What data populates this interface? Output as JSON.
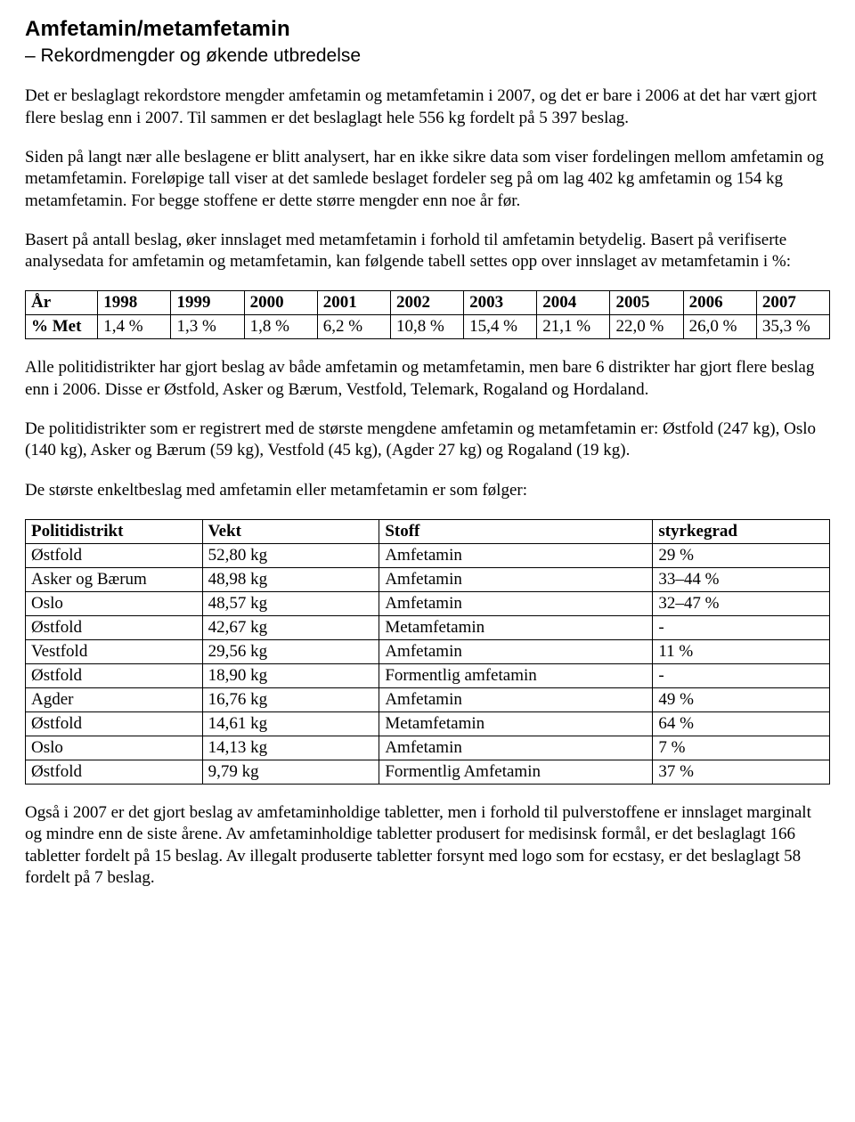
{
  "heading": {
    "title": "Amfetamin/metamfetamin",
    "subtitle": "– Rekordmengder og økende utbredelse"
  },
  "paragraphs": {
    "p1": "Det er beslaglagt rekordstore mengder amfetamin og metamfetamin i 2007, og det er bare i 2006 at det har vært gjort flere beslag enn i 2007. Til sammen er det beslaglagt hele 556 kg fordelt på 5 397 beslag.",
    "p2": "Siden på langt nær alle beslagene er blitt analysert, har en ikke sikre data som viser fordelingen mellom amfetamin og metamfetamin. Foreløpige tall viser at det samlede beslaget fordeler seg på om lag 402 kg amfetamin og 154 kg metamfetamin. For begge stoffene er dette større mengder enn noe år før.",
    "p3": "Basert på antall beslag, øker innslaget med metamfetamin i forhold til amfetamin betydelig. Basert på verifiserte analysedata for amfetamin og metamfetamin, kan følgende tabell settes opp over innslaget av metamfetamin i %:",
    "p4": "Alle politidistrikter har gjort beslag av både amfetamin og metamfetamin, men bare 6 distrikter har gjort flere beslag enn i 2006. Disse er Østfold, Asker og Bærum, Vestfold, Telemark, Rogaland og Hordaland.",
    "p5": "De politidistrikter som er registrert med de største mengdene amfetamin og metamfetamin er: Østfold (247 kg), Oslo (140 kg), Asker og Bærum (59 kg), Vestfold (45 kg), (Agder 27 kg) og Rogaland (19 kg).",
    "p6": "De største enkeltbeslag med amfetamin eller metamfetamin er som følger:",
    "p7": "Også i 2007 er det gjort beslag av amfetaminholdige tabletter, men i forhold til pulverstoffene er innslaget marginalt og mindre enn de siste årene. Av amfetaminholdige tabletter produsert for medisinsk formål, er det beslaglagt 166 tabletter fordelt på 15 beslag. Av illegalt produserte tabletter forsynt med logo som for ecstasy, er det beslaglagt 58 fordelt på 7 beslag."
  },
  "met_table": {
    "row_labels": [
      "År",
      "% Met"
    ],
    "years": [
      "1998",
      "1999",
      "2000",
      "2001",
      "2002",
      "2003",
      "2004",
      "2005",
      "2006",
      "2007"
    ],
    "values": [
      "1,4 %",
      "1,3 %",
      "1,8 %",
      "6,2 %",
      "10,8 %",
      "15,4 %",
      "21,1 %",
      "22,0 %",
      "26,0 %",
      "35,3 %"
    ]
  },
  "seizure_table": {
    "headers": [
      "Politidistrikt",
      "Vekt",
      "Stoff",
      "styrkegrad"
    ],
    "col_widths_pct": [
      22,
      22,
      34,
      22
    ],
    "rows": [
      [
        "Østfold",
        "52,80 kg",
        "Amfetamin",
        "29 %"
      ],
      [
        "Asker og Bærum",
        "48,98 kg",
        "Amfetamin",
        "33–44 %"
      ],
      [
        "Oslo",
        "48,57 kg",
        "Amfetamin",
        "32–47 %"
      ],
      [
        "Østfold",
        "42,67 kg",
        "Metamfetamin",
        "-"
      ],
      [
        "Vestfold",
        "29,56 kg",
        "Amfetamin",
        "11 %"
      ],
      [
        "Østfold",
        "18,90 kg",
        "Formentlig amfetamin",
        "-"
      ],
      [
        "Agder",
        "16,76 kg",
        "Amfetamin",
        "49 %"
      ],
      [
        "Østfold",
        "14,61 kg",
        "Metamfetamin",
        "64 %"
      ],
      [
        "Oslo",
        "14,13 kg",
        "Amfetamin",
        "7 %"
      ],
      [
        "Østfold",
        "  9,79 kg",
        "Formentlig Amfetamin",
        "37 %"
      ]
    ]
  }
}
